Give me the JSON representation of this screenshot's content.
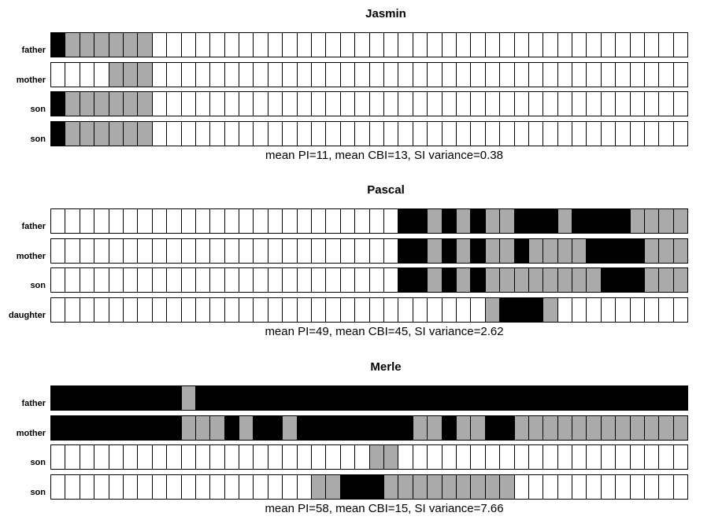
{
  "chart_data": [
    {
      "type": "heatmap",
      "title": "Jasmin",
      "legend_values": {
        "0": "white",
        "1": "gray",
        "2": "black"
      },
      "colors": {
        "0": "#ffffff",
        "1": "#aaaaaa",
        "2": "#000000"
      },
      "rows": [
        {
          "label": "father",
          "cells": [
            2,
            1,
            1,
            1,
            1,
            1,
            1,
            0,
            0,
            0,
            0,
            0,
            0,
            0,
            0,
            0,
            0,
            0,
            0,
            0,
            0,
            0,
            0,
            0,
            0,
            0,
            0,
            0,
            0,
            0,
            0,
            0,
            0,
            0,
            0,
            0,
            0,
            0,
            0,
            0,
            0,
            0,
            0,
            0
          ]
        },
        {
          "label": "mother",
          "cells": [
            0,
            0,
            0,
            0,
            1,
            1,
            1,
            0,
            0,
            0,
            0,
            0,
            0,
            0,
            0,
            0,
            0,
            0,
            0,
            0,
            0,
            0,
            0,
            0,
            0,
            0,
            0,
            0,
            0,
            0,
            0,
            0,
            0,
            0,
            0,
            0,
            0,
            0,
            0,
            0,
            0,
            0,
            0,
            0
          ]
        },
        {
          "label": "son",
          "cells": [
            2,
            1,
            1,
            1,
            1,
            1,
            1,
            0,
            0,
            0,
            0,
            0,
            0,
            0,
            0,
            0,
            0,
            0,
            0,
            0,
            0,
            0,
            0,
            0,
            0,
            0,
            0,
            0,
            0,
            0,
            0,
            0,
            0,
            0,
            0,
            0,
            0,
            0,
            0,
            0,
            0,
            0,
            0,
            0
          ]
        },
        {
          "label": "son",
          "cells": [
            2,
            1,
            1,
            1,
            1,
            1,
            1,
            0,
            0,
            0,
            0,
            0,
            0,
            0,
            0,
            0,
            0,
            0,
            0,
            0,
            0,
            0,
            0,
            0,
            0,
            0,
            0,
            0,
            0,
            0,
            0,
            0,
            0,
            0,
            0,
            0,
            0,
            0,
            0,
            0,
            0,
            0,
            0,
            0
          ]
        }
      ],
      "caption": "mean PI=11, mean CBI=13, SI variance=0.38"
    },
    {
      "type": "heatmap",
      "title": "Pascal",
      "legend_values": {
        "0": "white",
        "1": "gray",
        "2": "black"
      },
      "colors": {
        "0": "#ffffff",
        "1": "#aaaaaa",
        "2": "#000000"
      },
      "rows": [
        {
          "label": "father",
          "cells": [
            0,
            0,
            0,
            0,
            0,
            0,
            0,
            0,
            0,
            0,
            0,
            0,
            0,
            0,
            0,
            0,
            0,
            0,
            0,
            0,
            0,
            0,
            0,
            0,
            2,
            2,
            1,
            2,
            1,
            2,
            1,
            1,
            2,
            2,
            2,
            1,
            2,
            2,
            2,
            2,
            1,
            1,
            1,
            1
          ]
        },
        {
          "label": "mother",
          "cells": [
            0,
            0,
            0,
            0,
            0,
            0,
            0,
            0,
            0,
            0,
            0,
            0,
            0,
            0,
            0,
            0,
            0,
            0,
            0,
            0,
            0,
            0,
            0,
            0,
            2,
            2,
            1,
            2,
            1,
            2,
            1,
            1,
            2,
            1,
            1,
            1,
            1,
            2,
            2,
            2,
            2,
            1,
            1,
            1
          ]
        },
        {
          "label": "son",
          "cells": [
            0,
            0,
            0,
            0,
            0,
            0,
            0,
            0,
            0,
            0,
            0,
            0,
            0,
            0,
            0,
            0,
            0,
            0,
            0,
            0,
            0,
            0,
            0,
            0,
            2,
            2,
            1,
            2,
            1,
            2,
            1,
            1,
            1,
            1,
            1,
            1,
            1,
            1,
            2,
            2,
            2,
            1,
            1,
            1
          ]
        },
        {
          "label": "daughter",
          "cells": [
            0,
            0,
            0,
            0,
            0,
            0,
            0,
            0,
            0,
            0,
            0,
            0,
            0,
            0,
            0,
            0,
            0,
            0,
            0,
            0,
            0,
            0,
            0,
            0,
            0,
            0,
            0,
            0,
            0,
            0,
            1,
            2,
            2,
            2,
            1,
            0,
            0,
            0,
            0,
            0,
            0,
            0,
            0,
            0
          ]
        }
      ],
      "caption": "mean PI=49, mean CBI=45, SI variance=2.62"
    },
    {
      "type": "heatmap",
      "title": "Merle",
      "legend_values": {
        "0": "white",
        "1": "gray",
        "2": "black"
      },
      "colors": {
        "0": "#ffffff",
        "1": "#aaaaaa",
        "2": "#000000"
      },
      "rows": [
        {
          "label": "father",
          "cells": [
            2,
            2,
            2,
            2,
            2,
            2,
            2,
            2,
            2,
            1,
            2,
            2,
            2,
            2,
            2,
            2,
            2,
            2,
            2,
            2,
            2,
            2,
            2,
            2,
            2,
            2,
            2,
            2,
            2,
            2,
            2,
            2,
            2,
            2,
            2,
            2,
            2,
            2,
            2,
            2,
            2,
            2,
            2,
            2
          ]
        },
        {
          "label": "mother",
          "cells": [
            2,
            2,
            2,
            2,
            2,
            2,
            2,
            2,
            2,
            1,
            1,
            1,
            2,
            1,
            2,
            2,
            1,
            2,
            2,
            2,
            2,
            2,
            2,
            2,
            2,
            1,
            1,
            2,
            1,
            1,
            2,
            2,
            1,
            1,
            1,
            1,
            1,
            1,
            1,
            1,
            1,
            1,
            1,
            1
          ]
        },
        {
          "label": "son",
          "cells": [
            0,
            0,
            0,
            0,
            0,
            0,
            0,
            0,
            0,
            0,
            0,
            0,
            0,
            0,
            0,
            0,
            0,
            0,
            0,
            0,
            0,
            0,
            1,
            1,
            0,
            0,
            0,
            0,
            0,
            0,
            0,
            0,
            0,
            0,
            0,
            0,
            0,
            0,
            0,
            0,
            0,
            0,
            0,
            0
          ]
        },
        {
          "label": "son",
          "cells": [
            0,
            0,
            0,
            0,
            0,
            0,
            0,
            0,
            0,
            0,
            0,
            0,
            0,
            0,
            0,
            0,
            0,
            0,
            1,
            1,
            2,
            2,
            2,
            1,
            1,
            1,
            1,
            1,
            1,
            1,
            1,
            1,
            0,
            0,
            0,
            0,
            0,
            0,
            0,
            0,
            0,
            0,
            0,
            0
          ]
        }
      ],
      "caption": "mean PI=58, mean CBI=15, SI variance=7.66"
    }
  ]
}
